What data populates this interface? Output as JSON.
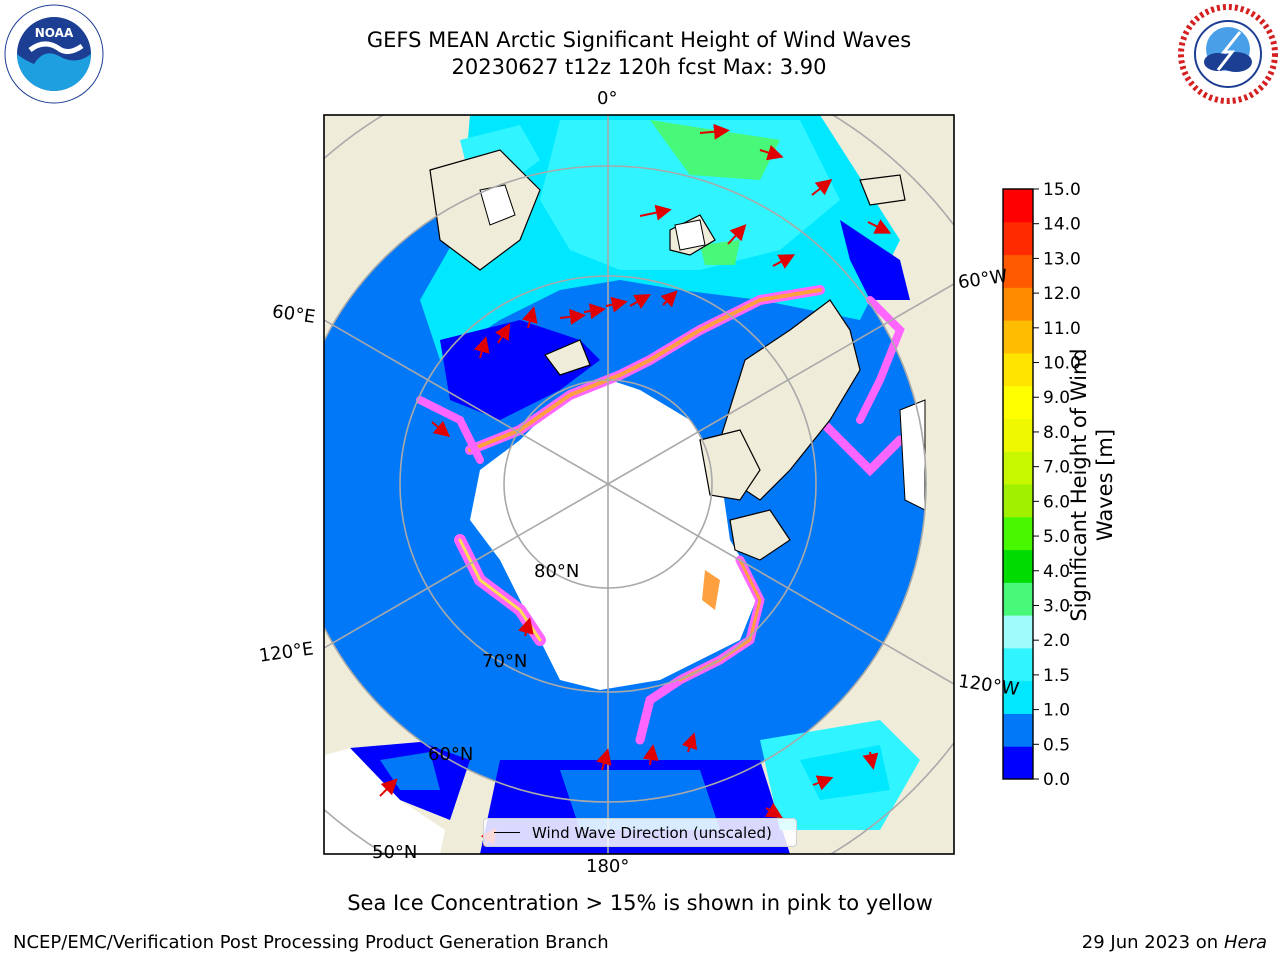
{
  "header": {
    "title_line1": "GEFS MEAN Arctic Significant Height of Wind Waves",
    "title_line2": "20230627 t12z 120h fcst   Max: 3.90"
  },
  "logos": {
    "left": "NOAA",
    "right": "NATIONAL WEATHER SERVICE"
  },
  "map": {
    "projection": "north-polar-stereographic",
    "longitude_labels": [
      "0°",
      "60°W",
      "120°W",
      "180°",
      "120°E",
      "60°E"
    ],
    "latitude_labels": [
      "80°N",
      "70°N",
      "60°N",
      "50°N"
    ],
    "legend_label": "Wind Wave Direction (unscaled)",
    "colors": {
      "land": "#efecda",
      "sea_ice": "#ffffff",
      "ice_edge": [
        "#ff66ff",
        "#ffa040",
        "#ffdd55"
      ],
      "grid": "#a9a9a9",
      "arrow": "#e00000"
    }
  },
  "colorbar": {
    "title": "Significant Height of Wind Waves [m]",
    "ticks": [
      "0.0",
      "0.5",
      "1.0",
      "1.5",
      "2.0",
      "3.0",
      "4.0",
      "5.0",
      "6.0",
      "7.0",
      "8.0",
      "9.0",
      "10.0",
      "11.0",
      "12.0",
      "13.0",
      "14.0",
      "15.0"
    ],
    "colors": [
      "#0000ff",
      "#0078f8",
      "#00e8ff",
      "#30f4ff",
      "#a0fcfc",
      "#48f878",
      "#00dc00",
      "#48f800",
      "#a0f000",
      "#c8f800",
      "#f0f800",
      "#ffff00",
      "#ffe400",
      "#ffbc00",
      "#ff8c00",
      "#ff5a00",
      "#ff2a00",
      "#ff0000"
    ]
  },
  "caption": "Sea Ice Concentration > 15% is shown in pink to yellow",
  "footer": {
    "left": "NCEP/EMC/Verification Post Processing Product Generation Branch",
    "right_date": "29 Jun 2023 on",
    "right_host": "Hera"
  }
}
